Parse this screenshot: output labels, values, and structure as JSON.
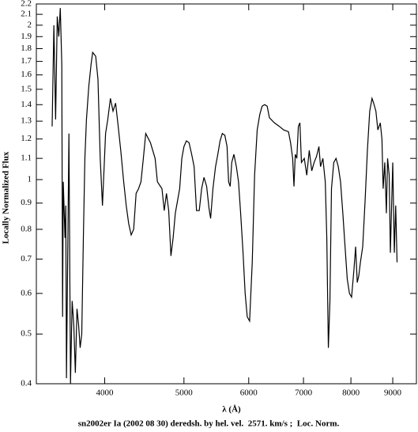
{
  "chart_data": {
    "type": "line",
    "title": "sn2002er Ia (2002 08 30) deredsh. by hel. vel.  2571. km/s ;  Loc. Norm.",
    "x_label": "λ (Å)",
    "y_label": "Locally Normalized Flux",
    "x_log": true,
    "y_log": true,
    "xlim": [
      3300,
      9620
    ],
    "ylim": [
      0.4,
      2.2
    ],
    "xticks": [
      4000,
      5000,
      6000,
      7000,
      8000,
      9000
    ],
    "yticks": [
      0.4,
      0.5,
      0.6,
      0.7,
      0.8,
      0.9,
      1,
      1.1,
      1.2,
      1.3,
      1.4,
      1.5,
      1.6,
      1.7,
      1.8,
      1.9,
      2,
      2.1,
      2.2
    ],
    "color": "#000000",
    "x": [
      3450,
      3467,
      3484,
      3500,
      3515,
      3530,
      3545,
      3553,
      3560,
      3577,
      3585,
      3592,
      3617,
      3633,
      3650,
      3667,
      3683,
      3700,
      3717,
      3733,
      3750,
      3767,
      3783,
      3800,
      3825,
      3850,
      3867,
      3900,
      3925,
      3950,
      3975,
      4010,
      4035,
      4065,
      4095,
      4125,
      4155,
      4185,
      4220,
      4250,
      4280,
      4310,
      4340,
      4370,
      4400,
      4430,
      4460,
      4490,
      4550,
      4610,
      4640,
      4700,
      4730,
      4760,
      4790,
      4820,
      4850,
      4880,
      4940,
      4970,
      5000,
      5035,
      5072,
      5110,
      5145,
      5180,
      5220,
      5255,
      5290,
      5330,
      5365,
      5390,
      5425,
      5465,
      5500,
      5535,
      5570,
      5610,
      5645,
      5670,
      5695,
      5720,
      5755,
      5795,
      5830,
      5865,
      5905,
      5940,
      5975,
      6015,
      6060,
      6100,
      6145,
      6190,
      6230,
      6275,
      6320,
      6360,
      6450,
      6540,
      6620,
      6710,
      6750,
      6790,
      6815,
      6840,
      6870,
      6900,
      6930,
      6960,
      7016,
      7065,
      7115,
      7165,
      7213,
      7262,
      7311,
      7344,
      7393,
      7443,
      7475,
      7508,
      7541,
      7574,
      7623,
      7672,
      7721,
      7770,
      7820,
      7869,
      7918,
      7967,
      8015,
      8070,
      8107,
      8144,
      8180,
      8217,
      8270,
      8326,
      8380,
      8435,
      8490,
      8528,
      8583,
      8630,
      8690,
      8730,
      8760,
      8800,
      8840,
      8870,
      8910,
      8940,
      9000,
      9040,
      9075,
      9110
    ],
    "values": [
      1.27,
      2.0,
      1.31,
      2.08,
      1.9,
      2.16,
      1.68,
      0.54,
      0.99,
      0.77,
      0.89,
      0.41,
      1.23,
      0.4,
      0.58,
      0.52,
      0.42,
      0.56,
      0.52,
      0.47,
      0.5,
      0.77,
      1.1,
      1.31,
      1.52,
      1.68,
      1.77,
      1.74,
      1.57,
      1.1,
      0.89,
      1.23,
      1.31,
      1.44,
      1.36,
      1.41,
      1.27,
      1.14,
      0.99,
      0.89,
      0.82,
      0.78,
      0.8,
      0.94,
      0.96,
      0.99,
      1.1,
      1.23,
      1.18,
      1.1,
      0.99,
      0.96,
      0.87,
      0.94,
      0.87,
      0.71,
      0.77,
      0.86,
      0.96,
      1.1,
      1.16,
      1.19,
      1.18,
      1.12,
      1.06,
      0.87,
      0.87,
      0.96,
      1.01,
      0.97,
      0.88,
      0.84,
      0.96,
      1.06,
      1.12,
      1.19,
      1.23,
      1.22,
      1.16,
      0.99,
      0.97,
      1.08,
      1.12,
      1.06,
      0.99,
      0.86,
      0.72,
      0.6,
      0.54,
      0.53,
      0.69,
      1.02,
      1.25,
      1.34,
      1.39,
      1.4,
      1.39,
      1.32,
      1.29,
      1.27,
      1.25,
      1.24,
      1.18,
      1.1,
      0.97,
      1.12,
      1.1,
      1.27,
      1.29,
      1.08,
      1.1,
      1.02,
      1.14,
      1.04,
      1.08,
      1.11,
      1.16,
      1.06,
      1.1,
      0.99,
      0.77,
      0.47,
      0.58,
      0.96,
      1.08,
      1.1,
      1.06,
      0.99,
      0.86,
      0.74,
      0.64,
      0.6,
      0.59,
      0.67,
      0.74,
      0.63,
      0.65,
      0.69,
      0.74,
      0.91,
      1.14,
      1.36,
      1.44,
      1.41,
      1.36,
      1.25,
      1.29,
      1.2,
      0.96,
      1.08,
      0.86,
      1.1,
      1.02,
      0.72,
      1.08,
      0.72,
      0.89,
      0.69
    ]
  }
}
